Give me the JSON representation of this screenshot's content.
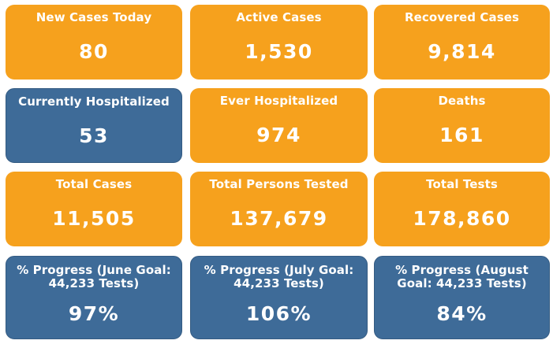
{
  "colors": {
    "orange": "#f6a11d",
    "blue": "#3e6b98",
    "text": "#ffffff"
  },
  "cards": [
    {
      "label": "New Cases Today",
      "value": "80"
    },
    {
      "label": "Active Cases",
      "value": "1,530"
    },
    {
      "label": "Recovered Cases",
      "value": "9,814"
    },
    {
      "label": "Currently Hospitalized",
      "value": "53"
    },
    {
      "label": "Ever Hospitalized",
      "value": "974"
    },
    {
      "label": "Deaths",
      "value": "161"
    },
    {
      "label": "Total Cases",
      "value": "11,505"
    },
    {
      "label": "Total Persons Tested",
      "value": "137,679"
    },
    {
      "label": "Total Tests",
      "value": "178,860"
    },
    {
      "label": "% Progress (June Goal: 44,233 Tests)",
      "value": "97%"
    },
    {
      "label": "% Progress (July Goal: 44,233 Tests)",
      "value": "106%"
    },
    {
      "label": "% Progress (August Goal: 44,233 Tests)",
      "value": "84%"
    }
  ]
}
